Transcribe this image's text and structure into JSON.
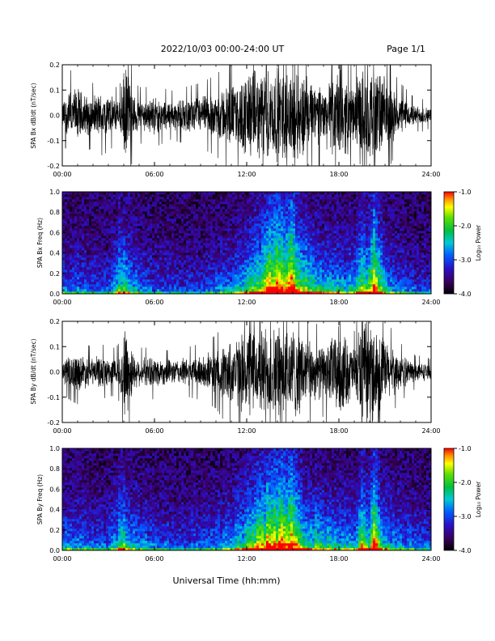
{
  "header": {
    "date_range": "2022/10/03  00:00-24:00 UT",
    "page": "Page 1/1"
  },
  "x_axis": {
    "title": "Universal Time (hh:mm)",
    "ticks": [
      "00:00",
      "06:00",
      "12:00",
      "18:00",
      "24:00"
    ]
  },
  "chart_data": [
    {
      "type": "line",
      "panel": "bx-waveform",
      "ylabel": "SPA Bx dB/dt (nT/sec)",
      "xlim": [
        0,
        24
      ],
      "ylim": [
        -0.2,
        0.2
      ],
      "yticks": [
        "-0.2",
        "-0.1",
        "0.0",
        "0.1",
        "0.2"
      ],
      "envelope": {
        "x_hours": [
          0,
          0.5,
          1,
          1.5,
          2,
          2.5,
          3,
          3.5,
          3.8,
          4,
          4.3,
          4.6,
          5,
          5.5,
          6,
          7,
          8,
          9,
          9.5,
          10,
          10.5,
          11,
          11.5,
          12,
          12.3,
          12.7,
          13,
          13.5,
          14,
          14.5,
          15,
          15.3,
          15.7,
          16,
          16.5,
          17,
          17.5,
          18,
          18.5,
          19,
          19.3,
          19.6,
          20,
          20.3,
          20.6,
          21,
          21.5,
          22,
          22.5,
          23,
          23.5,
          24
        ],
        "amplitude": [
          0.06,
          0.11,
          0.12,
          0.09,
          0.08,
          0.1,
          0.09,
          0.07,
          0.08,
          0.2,
          0.2,
          0.09,
          0.07,
          0.07,
          0.08,
          0.06,
          0.07,
          0.08,
          0.09,
          0.1,
          0.12,
          0.14,
          0.13,
          0.2,
          0.2,
          0.18,
          0.2,
          0.2,
          0.2,
          0.2,
          0.2,
          0.2,
          0.19,
          0.16,
          0.13,
          0.12,
          0.16,
          0.2,
          0.17,
          0.11,
          0.2,
          0.2,
          0.2,
          0.2,
          0.2,
          0.16,
          0.11,
          0.08,
          0.06,
          0.04,
          0.04,
          0.03
        ]
      }
    },
    {
      "type": "heatmap",
      "panel": "bx-spectrogram",
      "ylabel": "SPA Bx Freq (Hz)",
      "xlim": [
        0,
        24
      ],
      "ylim": [
        0,
        1
      ],
      "yticks": [
        "0.0",
        "0.2",
        "0.4",
        "0.6",
        "0.8",
        "1.0"
      ],
      "colorbar": {
        "label": "Log₁₀ Power",
        "range": [
          -4.0,
          -1.0
        ],
        "ticks": [
          "-1.0",
          "-2.0",
          "-3.0",
          "-4.0"
        ]
      },
      "activity": {
        "x_hours": [
          0,
          1,
          2,
          3,
          3.9,
          4.1,
          5,
          6,
          8,
          9,
          10,
          11,
          11.5,
          12,
          12.5,
          13,
          13.5,
          14,
          14.5,
          15,
          15.5,
          16,
          17,
          18,
          19,
          19.5,
          20,
          20.3,
          20.6,
          21,
          22,
          23,
          24
        ],
        "level": [
          0.3,
          0.3,
          0.25,
          0.25,
          0.6,
          0.55,
          0.3,
          0.25,
          0.2,
          0.25,
          0.3,
          0.35,
          0.45,
          0.55,
          0.65,
          0.75,
          0.85,
          0.95,
          0.9,
          0.95,
          0.7,
          0.6,
          0.45,
          0.45,
          0.4,
          0.7,
          0.65,
          0.9,
          0.7,
          0.45,
          0.3,
          0.22,
          0.2
        ]
      }
    },
    {
      "type": "line",
      "panel": "by-waveform",
      "ylabel": "SPA By dB/dt (nT/sec)",
      "xlim": [
        0,
        24
      ],
      "ylim": [
        -0.2,
        0.2
      ],
      "yticks": [
        "-0.2",
        "-0.1",
        "0.0",
        "0.1",
        "0.2"
      ],
      "envelope": {
        "x_hours": [
          0,
          0.5,
          1,
          1.5,
          2,
          2.5,
          3,
          3.5,
          3.8,
          4,
          4.3,
          4.6,
          5,
          5.5,
          6,
          7,
          8,
          9,
          9.5,
          10,
          10.5,
          11,
          11.5,
          12,
          12.3,
          12.7,
          13,
          13.5,
          14,
          14.5,
          15,
          15.3,
          15.7,
          16,
          16.5,
          17,
          17.5,
          18,
          18.5,
          19,
          19.3,
          19.6,
          20,
          20.3,
          20.6,
          21,
          21.5,
          22,
          22.5,
          23,
          23.5,
          24
        ],
        "amplitude": [
          0.05,
          0.07,
          0.08,
          0.07,
          0.06,
          0.07,
          0.06,
          0.06,
          0.08,
          0.2,
          0.2,
          0.08,
          0.06,
          0.06,
          0.07,
          0.05,
          0.06,
          0.07,
          0.08,
          0.09,
          0.12,
          0.14,
          0.15,
          0.2,
          0.2,
          0.17,
          0.2,
          0.2,
          0.2,
          0.2,
          0.2,
          0.2,
          0.17,
          0.13,
          0.12,
          0.11,
          0.15,
          0.2,
          0.15,
          0.1,
          0.2,
          0.2,
          0.2,
          0.2,
          0.2,
          0.14,
          0.1,
          0.07,
          0.06,
          0.04,
          0.04,
          0.03
        ]
      }
    },
    {
      "type": "heatmap",
      "panel": "by-spectrogram",
      "ylabel": "SPA By Freq (Hz)",
      "xlim": [
        0,
        24
      ],
      "ylim": [
        0,
        1
      ],
      "yticks": [
        "0.0",
        "0.2",
        "0.4",
        "0.6",
        "0.8",
        "1.0"
      ],
      "colorbar": {
        "label": "Log₁₀ Power",
        "range": [
          -4.0,
          -1.0
        ],
        "ticks": [
          "-1.0",
          "-2.0",
          "-3.0",
          "-4.0"
        ]
      },
      "activity": {
        "x_hours": [
          0,
          1,
          2,
          3,
          3.9,
          4.1,
          5,
          6,
          8,
          9,
          10,
          11,
          11.5,
          12,
          12.5,
          13,
          13.5,
          14,
          14.5,
          15,
          15.5,
          16,
          17,
          18,
          19,
          19.5,
          20,
          20.3,
          20.6,
          21,
          22,
          23,
          24
        ],
        "level": [
          0.4,
          0.35,
          0.3,
          0.3,
          0.6,
          0.55,
          0.35,
          0.3,
          0.25,
          0.3,
          0.3,
          0.4,
          0.5,
          0.6,
          0.7,
          0.8,
          0.85,
          0.95,
          0.9,
          0.95,
          0.7,
          0.55,
          0.5,
          0.45,
          0.4,
          0.7,
          0.6,
          0.9,
          0.65,
          0.45,
          0.35,
          0.3,
          0.3
        ]
      }
    }
  ]
}
